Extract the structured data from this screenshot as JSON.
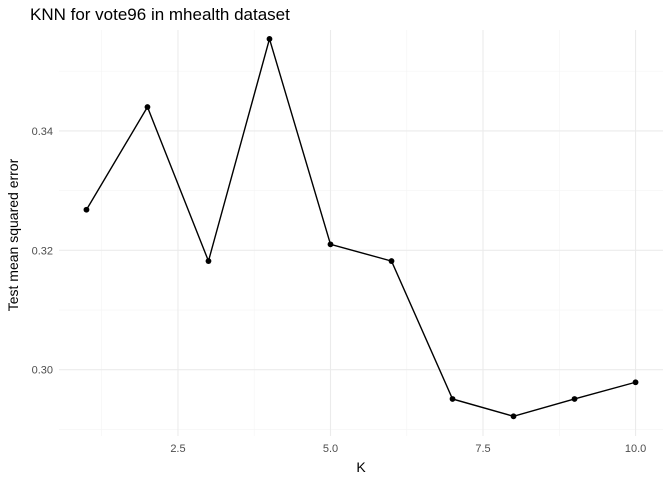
{
  "chart_data": {
    "type": "line",
    "title": "KNN for vote96 in mhealth dataset",
    "xlabel": "K",
    "ylabel": "Test mean squared error",
    "x": [
      1,
      2,
      3,
      4,
      5,
      6,
      7,
      8,
      9,
      10
    ],
    "y": [
      0.3268,
      0.344,
      0.3182,
      0.3554,
      0.321,
      0.3182,
      0.2951,
      0.2922,
      0.2951,
      0.2979
    ],
    "xlim": [
      0.55,
      10.45
    ],
    "ylim": [
      0.2889,
      0.3569
    ],
    "x_ticks": [
      2.5,
      5.0,
      7.5,
      10.0
    ],
    "x_tick_labels": [
      "2.5",
      "5.0",
      "7.5",
      "10.0"
    ],
    "y_ticks": [
      0.3,
      0.32,
      0.34
    ],
    "y_tick_labels": [
      "0.30",
      "0.32",
      "0.34"
    ],
    "grid": true,
    "legend": "none",
    "line_color": "#000000",
    "point_color": "#000000"
  }
}
